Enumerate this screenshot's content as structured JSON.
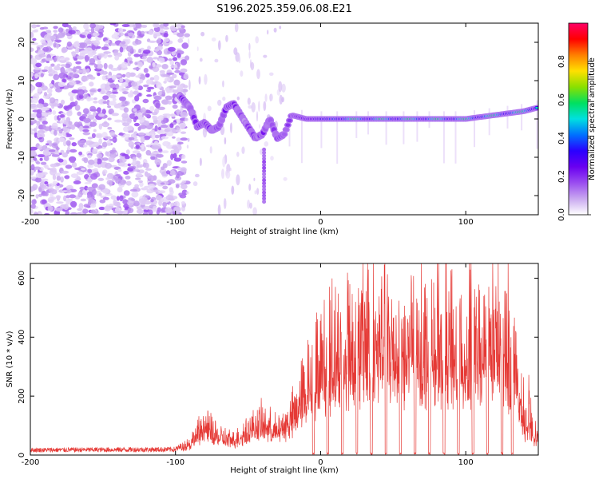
{
  "title": "S196.2025.359.06.08.E21",
  "colors": {
    "snr_line": "#e53935",
    "colormap": [
      "#ffffff",
      "#c9a8f0",
      "#9a4df0",
      "#6a00f0",
      "#2a00ff",
      "#0070ff",
      "#00e0e0",
      "#00e060",
      "#8ae000",
      "#ffe000",
      "#ff8000",
      "#ff0000",
      "#ff0066"
    ]
  },
  "chart_data": [
    {
      "type": "heatmap",
      "name": "spectrogram",
      "xlabel": "Height of straight line (km)",
      "ylabel": "Frequency (Hz)",
      "xlim": [
        -200,
        150
      ],
      "ylim": [
        -25,
        25
      ],
      "xticks": [
        -200,
        -100,
        0,
        100
      ],
      "yticks": [
        -20,
        -10,
        0,
        10,
        20
      ],
      "grid": false,
      "ridge": {
        "description_x": [
          -97,
          -90,
          -85,
          -80,
          -75,
          -70,
          -65,
          -60,
          -55,
          -50,
          -45,
          -40,
          -35,
          -30,
          -25,
          -20,
          -10,
          0,
          10,
          20,
          40,
          60,
          80,
          100,
          120,
          140,
          150
        ],
        "frequency_y": [
          6,
          3,
          -2,
          -1,
          -3,
          -2,
          3,
          4,
          1,
          -2,
          -5,
          -4,
          0,
          -5,
          -4,
          1,
          0,
          0,
          0,
          0,
          0,
          0,
          0,
          0,
          1,
          2,
          3
        ]
      },
      "colorbar": {
        "label": "Normalized spectral amplitude",
        "range": [
          0,
          1
        ],
        "ticks": [
          0.0,
          0.2,
          0.4,
          0.6,
          0.8
        ]
      }
    },
    {
      "type": "line",
      "name": "snr",
      "xlabel": "Height of straight line (km)",
      "ylabel": "SNR (10 * v/v)",
      "xlim": [
        -200,
        150
      ],
      "ylim": [
        0,
        650
      ],
      "xticks": [
        -200,
        -100,
        0,
        100
      ],
      "yticks": [
        0,
        200,
        400,
        600
      ],
      "grid": false,
      "envelope": {
        "x": [
          -200,
          -100,
          -90,
          -80,
          -70,
          -60,
          -50,
          -40,
          -30,
          -20,
          -10,
          0,
          10,
          20,
          30,
          40,
          60,
          80,
          100,
          110,
          120,
          130,
          140,
          150
        ],
        "y": [
          18,
          20,
          45,
          110,
          70,
          55,
          95,
          120,
          90,
          140,
          260,
          330,
          380,
          400,
          420,
          430,
          420,
          410,
          380,
          400,
          430,
          380,
          130,
          60
        ]
      },
      "dropouts_x": [
        -5,
        5,
        15,
        25,
        35,
        45,
        55,
        65,
        75,
        85,
        95,
        105,
        115,
        125,
        132
      ]
    }
  ]
}
